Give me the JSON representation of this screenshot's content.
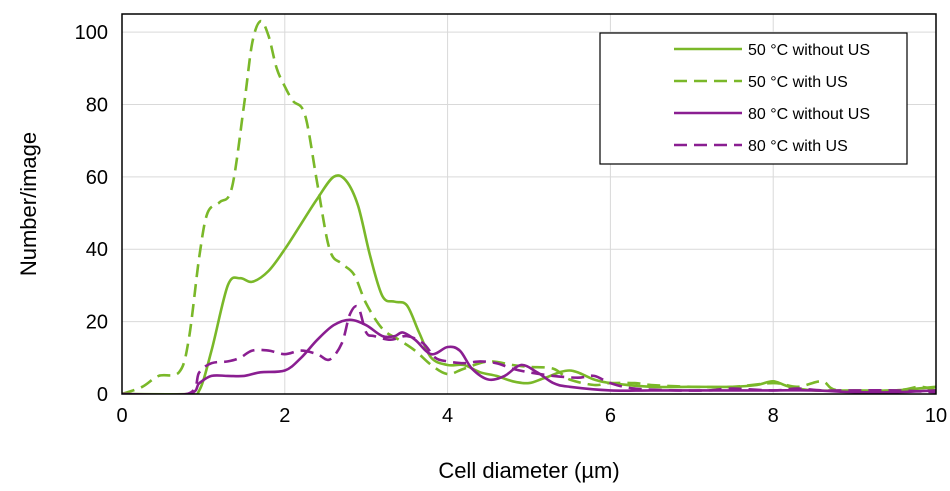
{
  "chart_data": {
    "type": "line",
    "title": "",
    "xlabel": "Cell diameter (µm)",
    "ylabel": "Number/image",
    "xlim": [
      0,
      10
    ],
    "ylim": [
      0,
      105
    ],
    "x_ticks": [
      0,
      2,
      4,
      6,
      8,
      10
    ],
    "y_ticks": [
      0,
      20,
      40,
      60,
      80,
      100
    ],
    "grid": true,
    "legend_position": "top-right",
    "colors": {
      "green": "#7ab829",
      "purple": "#8a1e91"
    },
    "series": [
      {
        "name": "50 °C without US",
        "color": "#7ab829",
        "dash": "solid",
        "points": [
          [
            0,
            0
          ],
          [
            0.8,
            0
          ],
          [
            0.95,
            1
          ],
          [
            1.1,
            12
          ],
          [
            1.3,
            30
          ],
          [
            1.45,
            32
          ],
          [
            1.6,
            31
          ],
          [
            1.8,
            34
          ],
          [
            2.0,
            40
          ],
          [
            2.2,
            47
          ],
          [
            2.4,
            54
          ],
          [
            2.6,
            60
          ],
          [
            2.75,
            59
          ],
          [
            2.9,
            52
          ],
          [
            3.05,
            38
          ],
          [
            3.2,
            27
          ],
          [
            3.35,
            25.5
          ],
          [
            3.5,
            24.5
          ],
          [
            3.65,
            17
          ],
          [
            3.8,
            10
          ],
          [
            4.0,
            8
          ],
          [
            4.2,
            8
          ],
          [
            4.4,
            6
          ],
          [
            4.6,
            5
          ],
          [
            4.8,
            3.5
          ],
          [
            5.0,
            3
          ],
          [
            5.2,
            4.5
          ],
          [
            5.5,
            6.5
          ],
          [
            5.8,
            4
          ],
          [
            6.0,
            3
          ],
          [
            6.5,
            2
          ],
          [
            7.0,
            2
          ],
          [
            7.5,
            2
          ],
          [
            7.8,
            2.5
          ],
          [
            8.0,
            3.5
          ],
          [
            8.2,
            2
          ],
          [
            8.5,
            1
          ],
          [
            9.0,
            1
          ],
          [
            9.5,
            1
          ],
          [
            10,
            2
          ]
        ]
      },
      {
        "name": "50 °C with US",
        "color": "#7ab829",
        "dash": "dashed",
        "points": [
          [
            0,
            0
          ],
          [
            0.25,
            2
          ],
          [
            0.45,
            5
          ],
          [
            0.7,
            6
          ],
          [
            0.82,
            15
          ],
          [
            0.95,
            38
          ],
          [
            1.05,
            50
          ],
          [
            1.2,
            53
          ],
          [
            1.35,
            57
          ],
          [
            1.5,
            80
          ],
          [
            1.6,
            97
          ],
          [
            1.7,
            103
          ],
          [
            1.8,
            99
          ],
          [
            1.9,
            90
          ],
          [
            2.0,
            85
          ],
          [
            2.1,
            81
          ],
          [
            2.25,
            77
          ],
          [
            2.4,
            58
          ],
          [
            2.55,
            40
          ],
          [
            2.7,
            36
          ],
          [
            2.85,
            33
          ],
          [
            3.0,
            25
          ],
          [
            3.2,
            18
          ],
          [
            3.4,
            15
          ],
          [
            3.6,
            12
          ],
          [
            3.8,
            8
          ],
          [
            4.0,
            5.5
          ],
          [
            4.2,
            7
          ],
          [
            4.5,
            9
          ],
          [
            4.8,
            8
          ],
          [
            5.0,
            7.5
          ],
          [
            5.3,
            7
          ],
          [
            5.5,
            4
          ],
          [
            5.8,
            2.5
          ],
          [
            6.0,
            3
          ],
          [
            6.3,
            3
          ],
          [
            6.5,
            2.5
          ],
          [
            7.0,
            2
          ],
          [
            7.5,
            2
          ],
          [
            8.0,
            3
          ],
          [
            8.3,
            2
          ],
          [
            8.6,
            3.5
          ],
          [
            8.8,
            1
          ],
          [
            9.5,
            1
          ],
          [
            9.8,
            2
          ],
          [
            10,
            1
          ]
        ]
      },
      {
        "name": "80 °C without US",
        "color": "#8a1e91",
        "dash": "solid",
        "points": [
          [
            0,
            0
          ],
          [
            0.8,
            0
          ],
          [
            0.95,
            3
          ],
          [
            1.1,
            5
          ],
          [
            1.3,
            5
          ],
          [
            1.5,
            5
          ],
          [
            1.7,
            6
          ],
          [
            2.0,
            6.5
          ],
          [
            2.2,
            10
          ],
          [
            2.4,
            15
          ],
          [
            2.6,
            19
          ],
          [
            2.8,
            20.5
          ],
          [
            3.0,
            19
          ],
          [
            3.2,
            16
          ],
          [
            3.35,
            16
          ],
          [
            3.45,
            17
          ],
          [
            3.6,
            15
          ],
          [
            3.8,
            11
          ],
          [
            4.0,
            13
          ],
          [
            4.15,
            12
          ],
          [
            4.3,
            7
          ],
          [
            4.5,
            4
          ],
          [
            4.7,
            5
          ],
          [
            4.9,
            8
          ],
          [
            5.1,
            6
          ],
          [
            5.3,
            3
          ],
          [
            5.5,
            2
          ],
          [
            6.0,
            1
          ],
          [
            6.5,
            1
          ],
          [
            7.0,
            1
          ],
          [
            7.5,
            1
          ],
          [
            8.0,
            1
          ],
          [
            8.5,
            1
          ],
          [
            9.0,
            0.5
          ],
          [
            9.5,
            0.5
          ],
          [
            10,
            1
          ]
        ]
      },
      {
        "name": "80 °C with US",
        "color": "#8a1e91",
        "dash": "dashed",
        "points": [
          [
            0,
            0
          ],
          [
            0.8,
            0
          ],
          [
            0.95,
            6
          ],
          [
            1.1,
            8.5
          ],
          [
            1.3,
            9
          ],
          [
            1.45,
            10
          ],
          [
            1.6,
            12
          ],
          [
            1.8,
            12
          ],
          [
            2.0,
            11
          ],
          [
            2.2,
            12
          ],
          [
            2.4,
            11
          ],
          [
            2.55,
            9.5
          ],
          [
            2.7,
            14
          ],
          [
            2.8,
            22
          ],
          [
            2.9,
            24
          ],
          [
            3.0,
            17
          ],
          [
            3.1,
            16
          ],
          [
            3.3,
            15
          ],
          [
            3.5,
            16
          ],
          [
            3.7,
            14
          ],
          [
            3.85,
            10
          ],
          [
            4.0,
            9
          ],
          [
            4.2,
            8.5
          ],
          [
            4.4,
            9
          ],
          [
            4.6,
            8.5
          ],
          [
            4.8,
            7
          ],
          [
            5.0,
            6
          ],
          [
            5.3,
            5
          ],
          [
            5.6,
            4.5
          ],
          [
            5.8,
            5
          ],
          [
            6.0,
            3
          ],
          [
            6.3,
            1.5
          ],
          [
            6.8,
            1
          ],
          [
            7.2,
            1
          ],
          [
            7.5,
            1.5
          ],
          [
            8.0,
            1
          ],
          [
            8.3,
            1.5
          ],
          [
            8.6,
            1
          ],
          [
            9.0,
            1
          ],
          [
            9.5,
            1
          ],
          [
            10,
            0.5
          ]
        ]
      }
    ]
  }
}
